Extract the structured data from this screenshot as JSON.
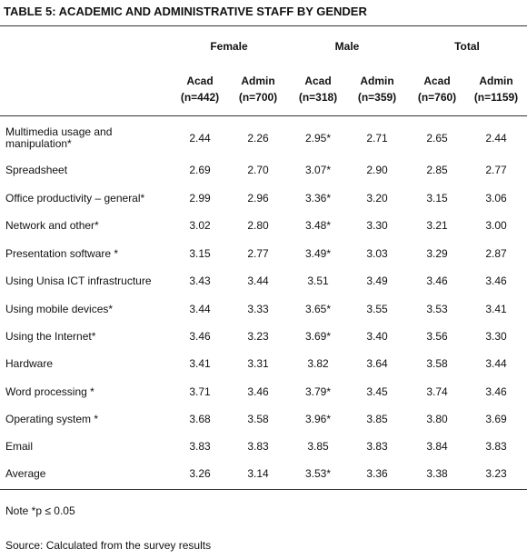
{
  "title": "TABLE  5:  ACADEMIC AND ADMINISTRATIVE STAFF BY GENDER",
  "table": {
    "groups": [
      "Female",
      "Male",
      "Total"
    ],
    "columns": [
      {
        "label": "Acad",
        "n": "(n=442)"
      },
      {
        "label": "Admin",
        "n": "(n=700)"
      },
      {
        "label": "Acad",
        "n": "(n=318)"
      },
      {
        "label": "Admin",
        "n": "(n=359)"
      },
      {
        "label": "Acad",
        "n": "(n=760)"
      },
      {
        "label": "Admin",
        "n": "(n=1159)"
      }
    ],
    "rows": [
      {
        "label": "Multimedia usage and manipulation*",
        "values": [
          "2.44",
          "2.26",
          "2.95*",
          "2.71",
          "2.65",
          "2.44"
        ]
      },
      {
        "label": "Spreadsheet",
        "values": [
          "2.69",
          "2.70",
          "3.07*",
          "2.90",
          "2.85",
          "2.77"
        ]
      },
      {
        "label": "Office productivity – general*",
        "values": [
          "2.99",
          "2.96",
          "3.36*",
          "3.20",
          "3.15",
          "3.06"
        ]
      },
      {
        "label": "Network and other*",
        "values": [
          "3.02",
          "2.80",
          "3.48*",
          "3.30",
          "3.21",
          "3.00"
        ]
      },
      {
        "label": "Presentation software *",
        "values": [
          "3.15",
          "2.77",
          "3.49*",
          "3.03",
          "3.29",
          "2.87"
        ]
      },
      {
        "label": "Using Unisa ICT infrastructure",
        "values": [
          "3.43",
          "3.44",
          "3.51",
          "3.49",
          "3.46",
          "3.46"
        ]
      },
      {
        "label": "Using mobile devices*",
        "values": [
          "3.44",
          "3.33",
          "3.65*",
          "3.55",
          "3.53",
          "3.41"
        ]
      },
      {
        "label": "Using the Internet*",
        "values": [
          "3.46",
          "3.23",
          "3.69*",
          "3.40",
          "3.56",
          "3.30"
        ]
      },
      {
        "label": "Hardware",
        "values": [
          "3.41",
          "3.31",
          "3.82",
          "3.64",
          "3.58",
          "3.44"
        ]
      },
      {
        "label": "Word processing *",
        "values": [
          "3.71",
          "3.46",
          "3.79*",
          "3.45",
          "3.74",
          "3.46"
        ]
      },
      {
        "label": "Operating system *",
        "values": [
          "3.68",
          "3.58",
          "3.96*",
          "3.85",
          "3.80",
          "3.69"
        ]
      },
      {
        "label": "Email",
        "values": [
          "3.83",
          "3.83",
          "3.85",
          "3.83",
          "3.84",
          "3.83"
        ]
      },
      {
        "label": "Average",
        "values": [
          "3.26",
          "3.14",
          "3.53*",
          "3.36",
          "3.38",
          "3.23"
        ]
      }
    ]
  },
  "note": "Note *p ≤ 0.05",
  "source": "Source: Calculated from the survey results"
}
